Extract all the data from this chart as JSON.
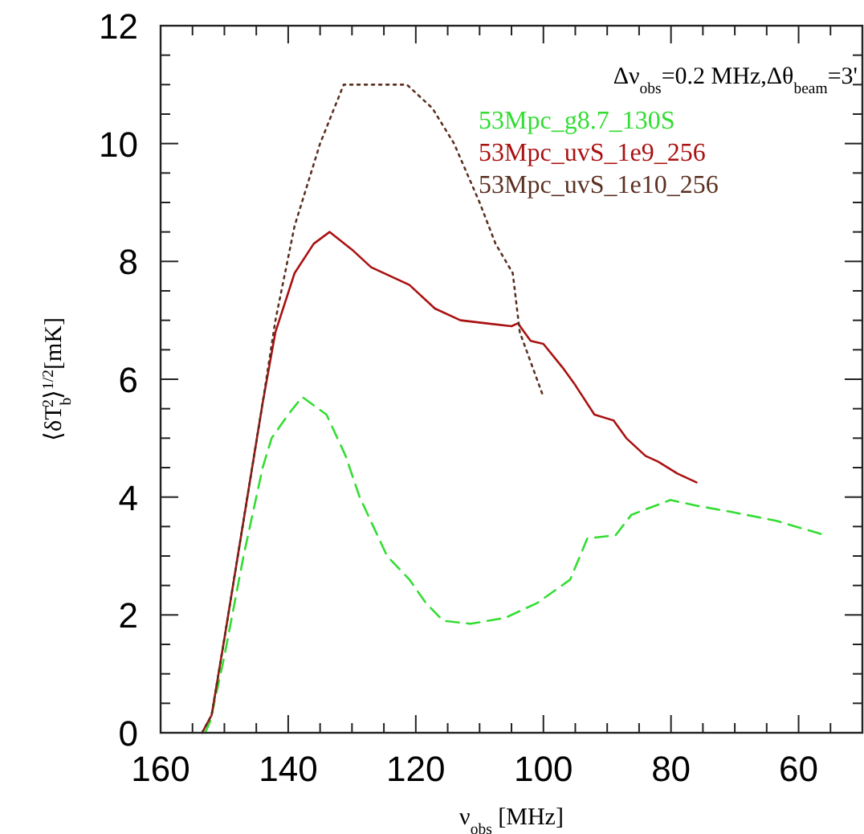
{
  "chart_data": {
    "type": "line",
    "xlabel": "ν$_{obs}$ [MHz]",
    "ylabel": "⟨δT$_{b}$$^{2}$⟩$^{1/2}$[mK]",
    "xlim": [
      160,
      50
    ],
    "ylim": [
      0,
      12
    ],
    "xticks": [
      160,
      {
        "value": 155,
        "label": null
      },
      140,
      {
        "value": 150,
        "label": null
      },
      {
        "value": 145,
        "label": null
      },
      {
        "value": 135,
        "label": null
      },
      {
        "value": 130,
        "label": null
      },
      {
        "value": 125,
        "label": null
      },
      120,
      {
        "value": 115,
        "label": null
      },
      {
        "value": 110,
        "label": null
      },
      {
        "value": 105,
        "label": null
      },
      100,
      {
        "value": 95,
        "label": null
      },
      {
        "value": 90,
        "label": null
      },
      {
        "value": 85,
        "label": null
      },
      80,
      {
        "value": 75,
        "label": null
      },
      {
        "value": 70,
        "label": null
      },
      {
        "value": 65,
        "label": null
      },
      60,
      {
        "value": 55,
        "label": null
      }
    ],
    "yticks": [
      0,
      {
        "value": 0.5,
        "label": null
      },
      {
        "value": 1,
        "label": null
      },
      {
        "value": 1.5,
        "label": null
      },
      2,
      {
        "value": 2.5,
        "label": null
      },
      {
        "value": 3,
        "label": null
      },
      {
        "value": 3.5,
        "label": null
      },
      4,
      {
        "value": 4.5,
        "label": null
      },
      {
        "value": 5,
        "label": null
      },
      {
        "value": 5.5,
        "label": null
      },
      6,
      {
        "value": 6.5,
        "label": null
      },
      {
        "value": 7,
        "label": null
      },
      {
        "value": 7.5,
        "label": null
      },
      8,
      {
        "value": 8.5,
        "label": null
      },
      {
        "value": 9,
        "label": null
      },
      {
        "value": 9.5,
        "label": null
      },
      10,
      {
        "value": 10.5,
        "label": null
      },
      {
        "value": 11,
        "label": null
      },
      {
        "value": 11.5,
        "label": null
      },
      12
    ],
    "grid": false,
    "legend": "top right",
    "marker": "none",
    "annotations": [
      "Δν$_{obs}$=0.2 MHz,Δθ$_{beam}$=3'"
    ],
    "series": [
      {
        "name": "53Mpc_g8.7_130S",
        "color": "#33dd33",
        "line_style": "dashed",
        "x": [
          153,
          152.2,
          150,
          147,
          144,
          142.6,
          140,
          137.8,
          134,
          131,
          128.8,
          124.5,
          121,
          118.4,
          115.7,
          111.4,
          106,
          101,
          95.8,
          93.1,
          88.7,
          86.2,
          80.1,
          75.8,
          70.6,
          63.6,
          55.7
        ],
        "values": [
          0,
          0.2,
          1.3,
          3.0,
          4.5,
          5.0,
          5.4,
          5.7,
          5.4,
          4.7,
          4.0,
          3.0,
          2.6,
          2.2,
          1.9,
          1.85,
          1.95,
          2.2,
          2.6,
          3.3,
          3.35,
          3.7,
          3.95,
          3.85,
          3.75,
          3.6,
          3.35
        ]
      },
      {
        "name": "53Mpc_uvS_1e9_256",
        "color": "#aa1111",
        "line_style": "solid",
        "x": [
          153.5,
          152,
          150,
          147,
          144,
          142,
          139,
          136,
          133.5,
          130,
          127,
          121,
          117,
          113,
          109,
          105,
          104,
          102,
          100,
          97,
          95,
          92,
          89,
          87,
          84,
          82,
          79,
          76
        ],
        "values": [
          0,
          0.3,
          1.6,
          3.6,
          5.6,
          6.8,
          7.8,
          8.3,
          8.5,
          8.2,
          7.9,
          7.6,
          7.2,
          7.0,
          6.95,
          6.9,
          6.95,
          6.65,
          6.6,
          6.2,
          5.9,
          5.4,
          5.3,
          5.0,
          4.7,
          4.6,
          4.4,
          4.25
        ]
      },
      {
        "name": "53Mpc_uvS_1e10_256",
        "color": "#5a3020",
        "line_style": "dotted",
        "x": [
          153.5,
          152,
          150,
          147,
          144,
          142,
          139,
          135,
          131.3,
          126,
          121.4,
          117.4,
          114,
          110,
          107.5,
          104.8,
          103.7,
          100
        ],
        "values": [
          0,
          0.3,
          1.6,
          3.6,
          5.6,
          7.0,
          8.6,
          10.0,
          11.0,
          11.0,
          11.0,
          10.6,
          10.0,
          9.0,
          8.3,
          7.8,
          6.8,
          5.7
        ]
      }
    ]
  }
}
